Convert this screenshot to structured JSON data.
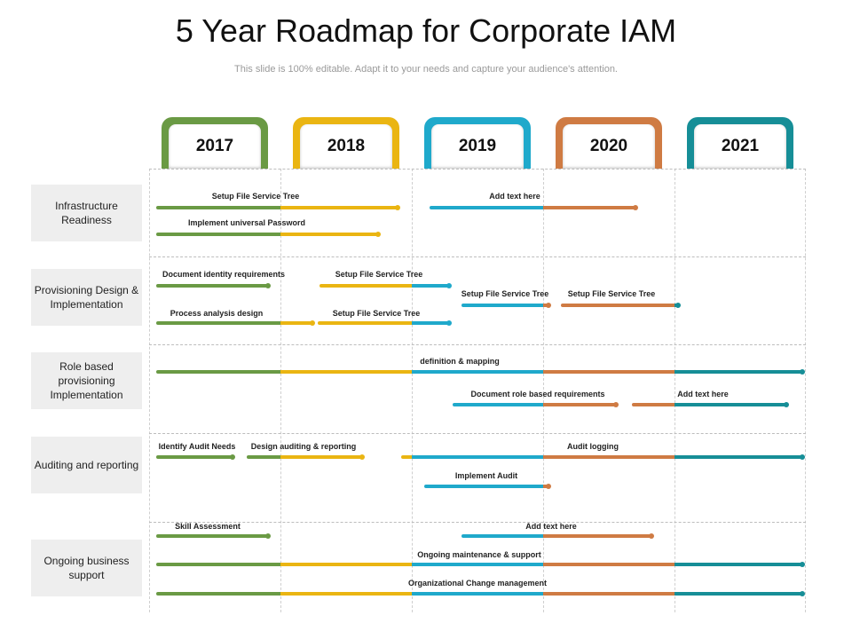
{
  "title": "5 Year Roadmap for Corporate IAM",
  "subtitle": "This slide is 100% editable. Adapt it to your needs and capture your audience's attention.",
  "colors": {
    "y2017": "#6a9a44",
    "y2018": "#eab512",
    "y2019": "#1fa9cb",
    "y2020": "#cf7b43",
    "y2021": "#168e97"
  },
  "years": [
    "2017",
    "2018",
    "2019",
    "2020",
    "2021"
  ],
  "categories": [
    "Infrastructure Readiness",
    "Provisioning Design & Implementation",
    "Role based provisioning Implementation",
    "Auditing and reporting",
    "Ongoing business support"
  ],
  "tasks": {
    "infra_setup": "Setup File Service Tree",
    "infra_add": "Add text here",
    "infra_password": "Implement universal Password",
    "prov_doc": "Document identity requirements",
    "prov_setup_a": "Setup File Service Tree",
    "prov_setup_b": "Setup File Service Tree",
    "prov_setup_c": "Setup File Service Tree",
    "prov_process": "Process analysis design",
    "prov_setup_d": "Setup File Service Tree",
    "role_def": "definition & mapping",
    "role_doc": "Document role based requirements",
    "role_add": "Add text here",
    "audit_identify": "Identify Audit Needs",
    "audit_design": "Design auditing & reporting",
    "audit_logging": "Audit logging",
    "audit_implement": "Implement Audit",
    "support_skill": "Skill Assessment",
    "support_add": "Add text here",
    "support_maint": "Ongoing maintenance & support",
    "support_change": "Organizational Change management"
  }
}
